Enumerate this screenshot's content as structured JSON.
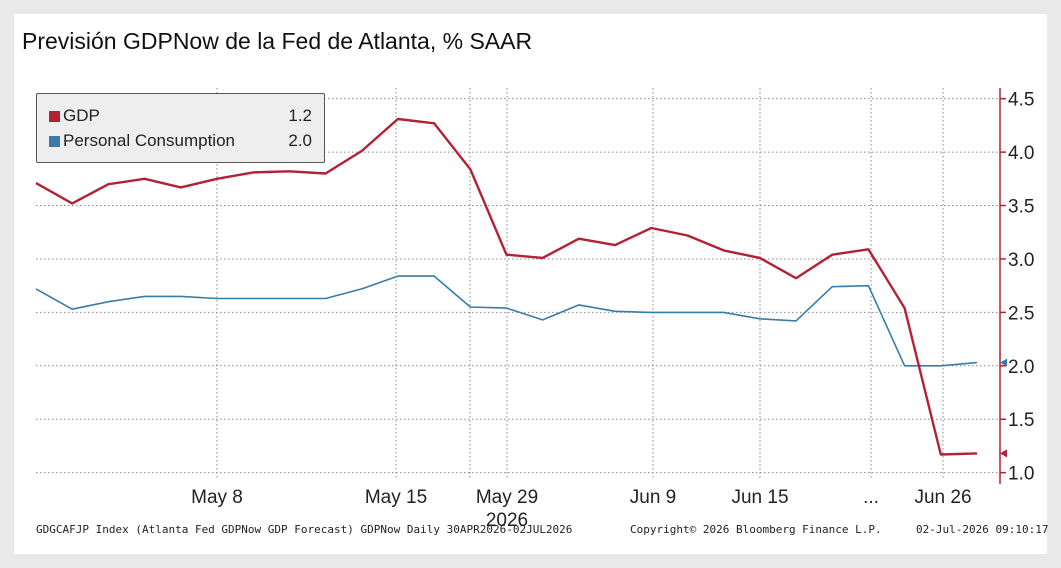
{
  "title": "Previsión GDPNow de la Fed de Atlanta, % SAAR",
  "legend": {
    "items": [
      {
        "label": "GDP",
        "value": "1.2",
        "color": "#b22234"
      },
      {
        "label": "Personal Consumption",
        "value": "2.0",
        "color": "#3a7ca8"
      }
    ]
  },
  "footer": {
    "source": "GDGCAFJP Index (Atlanta Fed GDPNow GDP Forecast) GDPNow Daily 30APR2026-02JUL2026",
    "copyright": "Copyright© 2026 Bloomberg Finance L.P.",
    "timestamp": "02-Jul-2026 09:10:17"
  },
  "chart_data": {
    "type": "line",
    "ylim": [
      0.95,
      4.6
    ],
    "y_ticks": [
      "4.5",
      "4.0",
      "3.5",
      "3.0",
      "2.5",
      "2.0",
      "1.5",
      "1.0"
    ],
    "y_axis_side": "right",
    "x_ticks": [
      "May 8",
      "May 15",
      "May 29",
      "Jun 9",
      "Jun 15",
      "...",
      "Jun 26"
    ],
    "x_tick_sub": {
      "May 29": "2026"
    },
    "grid": true,
    "legend_position": "top-left",
    "series": [
      {
        "name": "GDP",
        "color": "#b22234",
        "values": [
          3.71,
          3.52,
          3.7,
          3.75,
          3.67,
          3.75,
          3.81,
          3.82,
          3.8,
          4.01,
          4.31,
          4.27,
          3.84,
          3.04,
          3.01,
          3.19,
          3.13,
          3.29,
          3.22,
          3.08,
          3.01,
          2.82,
          3.04,
          3.09,
          2.54,
          1.17,
          1.18
        ]
      },
      {
        "name": "Personal Consumption",
        "color": "#3a7ca8",
        "values": [
          2.72,
          2.53,
          2.6,
          2.65,
          2.65,
          2.63,
          2.63,
          2.63,
          2.63,
          2.72,
          2.84,
          2.84,
          2.55,
          2.54,
          2.43,
          2.57,
          2.51,
          2.5,
          2.5,
          2.5,
          2.44,
          2.42,
          2.74,
          2.75,
          2.0,
          2.0,
          2.03
        ]
      }
    ]
  }
}
